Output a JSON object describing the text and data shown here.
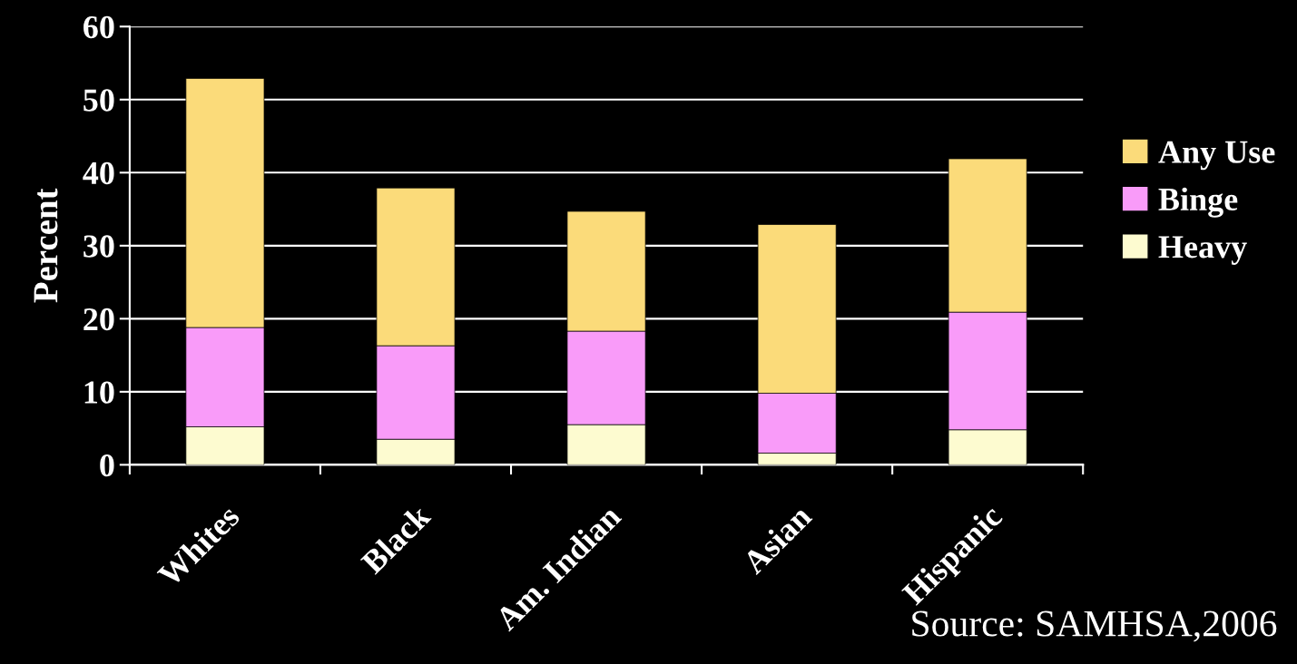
{
  "chart_data": {
    "type": "bar",
    "stacked": true,
    "ylabel": "Percent",
    "categories": [
      "Whites",
      "Black",
      "Am. Indian",
      "Asian",
      "Hispanic"
    ],
    "series": [
      {
        "name": "Heavy",
        "color": "#fdfbd0",
        "values": [
          5.2,
          3.5,
          5.5,
          1.6,
          4.8
        ]
      },
      {
        "name": "Binge",
        "color": "#f99bf9",
        "values": [
          13.6,
          12.8,
          12.8,
          8.2,
          16.1
        ]
      },
      {
        "name": "Any Use",
        "color": "#fbdb7a",
        "values": [
          34.1,
          21.6,
          16.4,
          23.1,
          21.0
        ]
      }
    ],
    "ylim": [
      0,
      60
    ],
    "yticks": [
      0,
      10,
      20,
      30,
      40,
      50,
      60
    ],
    "grid": "y",
    "legend": "right",
    "annotations": [
      "Source: SAMHSA,2006"
    ]
  }
}
